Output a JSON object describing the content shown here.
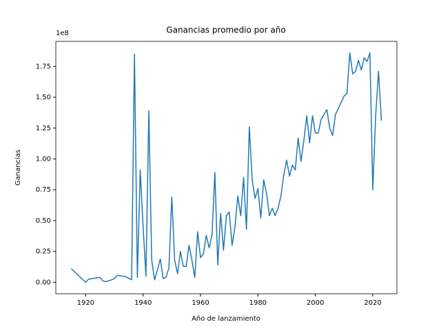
{
  "chart_data": {
    "type": "line",
    "title": "Ganancias promedio por año",
    "x_label": "Año de lanzamiento",
    "y_label": "Ganancias",
    "y_offset_label": "1e8",
    "xlim": [
      1909.6,
      2028.4
    ],
    "ylim": [
      -0.093,
      1.953
    ],
    "xticks": [
      1920,
      1940,
      1960,
      1980,
      2000,
      2020
    ],
    "yticks": [
      {
        "value": 0,
        "label": "0.00"
      },
      {
        "value": 0.25,
        "label": "0.25"
      },
      {
        "value": 0.5,
        "label": "0.50"
      },
      {
        "value": 0.75,
        "label": "0.75"
      },
      {
        "value": 1,
        "label": "1.00"
      },
      {
        "value": 1.25,
        "label": "1.25"
      },
      {
        "value": 1.5,
        "label": "1.50"
      },
      {
        "value": 1.75,
        "label": "1.75"
      }
    ],
    "x": [
      1915,
      1920,
      1921,
      1925,
      1926,
      1927,
      1929,
      1930,
      1931,
      1933,
      1934,
      1936,
      1937,
      1938,
      1939,
      1940,
      1941,
      1942,
      1943,
      1944,
      1945,
      1946,
      1947,
      1948,
      1949,
      1950,
      1951,
      1952,
      1953,
      1954,
      1955,
      1956,
      1957,
      1958,
      1959,
      1960,
      1961,
      1962,
      1963,
      1964,
      1965,
      1966,
      1967,
      1968,
      1969,
      1970,
      1971,
      1972,
      1973,
      1974,
      1975,
      1976,
      1977,
      1978,
      1979,
      1980,
      1981,
      1982,
      1983,
      1984,
      1985,
      1986,
      1987,
      1988,
      1989,
      1990,
      1991,
      1992,
      1993,
      1994,
      1995,
      1996,
      1997,
      1998,
      1999,
      2000,
      2001,
      2002,
      2003,
      2004,
      2005,
      2006,
      2007,
      2008,
      2009,
      2010,
      2011,
      2012,
      2013,
      2014,
      2015,
      2016,
      2017,
      2018,
      2019,
      2020,
      2021,
      2022,
      2023
    ],
    "series": [
      {
        "color": "#1f77b4",
        "values": [
          0.11,
          0.0,
          0.025,
          0.04,
          0.01,
          0.005,
          0.02,
          0.03,
          0.055,
          0.05,
          0.045,
          0.02,
          1.85,
          0.04,
          0.91,
          0.45,
          0.05,
          1.39,
          0.18,
          0.02,
          0.1,
          0.19,
          0.03,
          0.04,
          0.12,
          0.69,
          0.18,
          0.07,
          0.25,
          0.13,
          0.13,
          0.3,
          0.18,
          0.04,
          0.41,
          0.2,
          0.23,
          0.38,
          0.28,
          0.38,
          0.89,
          0.14,
          0.56,
          0.26,
          0.54,
          0.57,
          0.3,
          0.45,
          0.7,
          0.54,
          0.85,
          0.43,
          1.26,
          0.83,
          0.68,
          0.76,
          0.52,
          0.83,
          0.72,
          0.54,
          0.6,
          0.54,
          0.6,
          0.7,
          0.87,
          0.99,
          0.86,
          0.95,
          0.91,
          1.17,
          0.98,
          1.15,
          1.35,
          1.13,
          1.35,
          1.21,
          1.21,
          1.32,
          1.36,
          1.4,
          1.25,
          1.19,
          1.36,
          1.41,
          1.46,
          1.51,
          1.53,
          1.86,
          1.69,
          1.71,
          1.8,
          1.72,
          1.82,
          1.79,
          1.86,
          0.75,
          1.35,
          1.71,
          1.31
        ]
      }
    ]
  }
}
